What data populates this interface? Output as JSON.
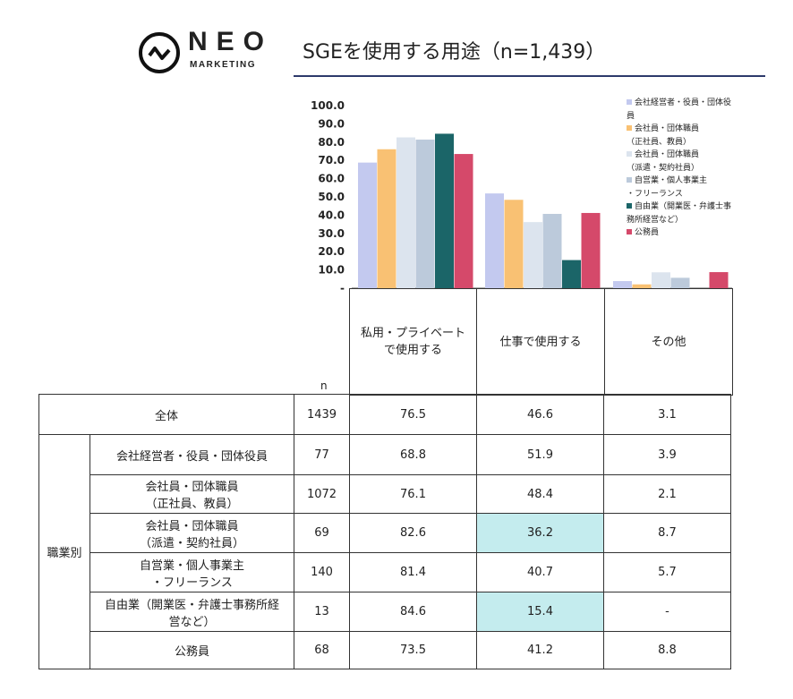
{
  "brand": {
    "name": "NEO",
    "sub": "MARKETING"
  },
  "title": "SGEを使用する用途（n=1,439）",
  "chart_data": {
    "type": "bar",
    "categories": [
      "私用・プライベートで使用する",
      "仕事で使用する",
      "その他"
    ],
    "ylim": [
      0,
      100
    ],
    "yticks": [
      "-",
      "10.0",
      "20.0",
      "30.0",
      "40.0",
      "50.0",
      "60.0",
      "70.0",
      "80.0",
      "90.0",
      "100.0"
    ],
    "legend_position": "top-right",
    "series": [
      {
        "name": "会社経営者・役員・団体役員",
        "legend_lines": [
          "会社経営者・役員・団体役",
          "員"
        ],
        "color": "#c3c9ef",
        "values": [
          68.8,
          51.9,
          3.9
        ]
      },
      {
        "name": "会社員・団体職員（正社員、教員）",
        "legend_lines": [
          "会社員・団体職員",
          "（正社員、教員）"
        ],
        "color": "#f9c173",
        "values": [
          76.1,
          48.4,
          2.1
        ]
      },
      {
        "name": "会社員・団体職員（派遣・契約社員）",
        "legend_lines": [
          "会社員・団体職員",
          "（派遣・契約社員）"
        ],
        "color": "#dce4ee",
        "values": [
          82.6,
          36.2,
          8.7
        ]
      },
      {
        "name": "自営業・個人事業主・フリーランス",
        "legend_lines": [
          "自営業・個人事業主",
          "・フリーランス"
        ],
        "color": "#bccadb",
        "values": [
          81.4,
          40.7,
          5.7
        ]
      },
      {
        "name": "自由業（開業医・弁護士事務所経営など）",
        "legend_lines": [
          "自由業（開業医・弁護士事",
          "務所経営など）"
        ],
        "color": "#1b6568",
        "values": [
          84.6,
          15.4,
          0
        ]
      },
      {
        "name": "公務員",
        "legend_lines": [
          "公務員"
        ],
        "color": "#d5496a",
        "values": [
          73.5,
          41.2,
          8.8
        ]
      }
    ]
  },
  "table": {
    "headers": [
      "私用・プライベート\nで使用する",
      "仕事で使用する",
      "その他"
    ],
    "n_label": "n",
    "group_label": "職業別",
    "highlight_color": "#c4ecee",
    "total": {
      "label": "全体",
      "n": "1439",
      "values": [
        "76.5",
        "46.6",
        "3.1"
      ]
    },
    "rows": [
      {
        "label": "会社経営者・役員・団体役員",
        "n": "77",
        "values": [
          "68.8",
          "51.9",
          "3.9"
        ],
        "highlight": [
          false,
          false,
          false
        ]
      },
      {
        "label": "会社員・団体職員\n（正社員、教員）",
        "n": "1072",
        "values": [
          "76.1",
          "48.4",
          "2.1"
        ],
        "highlight": [
          false,
          false,
          false
        ]
      },
      {
        "label": "会社員・団体職員\n（派遣・契約社員）",
        "n": "69",
        "values": [
          "82.6",
          "36.2",
          "8.7"
        ],
        "highlight": [
          false,
          true,
          false
        ]
      },
      {
        "label": "自営業・個人事業主\n・フリーランス",
        "n": "140",
        "values": [
          "81.4",
          "40.7",
          "5.7"
        ],
        "highlight": [
          false,
          false,
          false
        ]
      },
      {
        "label": "自由業（開業医・弁護士事務所経\n営など）",
        "n": "13",
        "values": [
          "84.6",
          "15.4",
          "-"
        ],
        "highlight": [
          false,
          true,
          false
        ]
      },
      {
        "label": "公務員",
        "n": "68",
        "values": [
          "73.5",
          "41.2",
          "8.8"
        ],
        "highlight": [
          false,
          false,
          false
        ]
      }
    ]
  }
}
